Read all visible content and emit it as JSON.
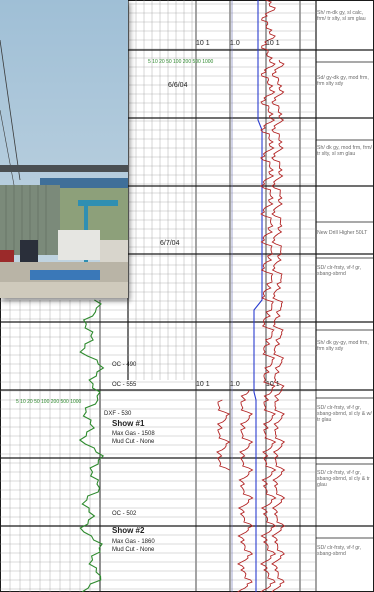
{
  "scale_labels": {
    "top_a": "10 1",
    "top_b": "1.0",
    "top_c": "10 1",
    "mid_a": "10 1",
    "mid_b": "1.0",
    "mid_c": "10 1",
    "green_scale_top": "5  10  20  50  100  200  500  1000",
    "green_scale_bottom": "5  10  20  50  100  200  500  1000"
  },
  "depth_labels": [
    "6/6/04",
    "6/7/04"
  ],
  "marks": {
    "oc1": "OC - 490",
    "oc2": "OC - 555",
    "dxf": "DXF - 530",
    "oc3": "OC - 502"
  },
  "shows": [
    {
      "title": "Show #1",
      "line1": "Max Gas - 1508",
      "line2": "Mud Cut - None"
    },
    {
      "title": "Show #2",
      "line1": "Max Gas - 1860",
      "line2": "Mud Cut - None"
    }
  ],
  "descriptions": [
    "Sh/ m-dk gy, sl calc, frm/ tr slty, sl sm glau",
    "Sd/ gy-dk gy, mod frm, frm slty sdy",
    "Sh/ dk gy, mod frm, frm/ tr slty, sl sm glau",
    "New Drill Higher 50LT",
    "SD/ clr-frsty, vf-f gr, sbang-sbrnd",
    "Sh/ dk gy-gy, mod frm, frm slty sdy",
    "SD/ clr-frsty, vf-f gr, sbang-sbrnd, sl cly & w/ tr glau",
    "SD/ clr-frsty, vf-f gr, sbang-sbrnd, sl cly & tr glau",
    "SD/ clr-frsty, vf-f gr, sbang-sbrnd"
  ],
  "colors": {
    "grid_major": "#1a1a1a",
    "grid_minor": "#9a9a9a",
    "gas_curve": "#2e8b2e",
    "lithology": "#b22222",
    "rop_line": "#2a3ccf",
    "text": "#222222"
  }
}
